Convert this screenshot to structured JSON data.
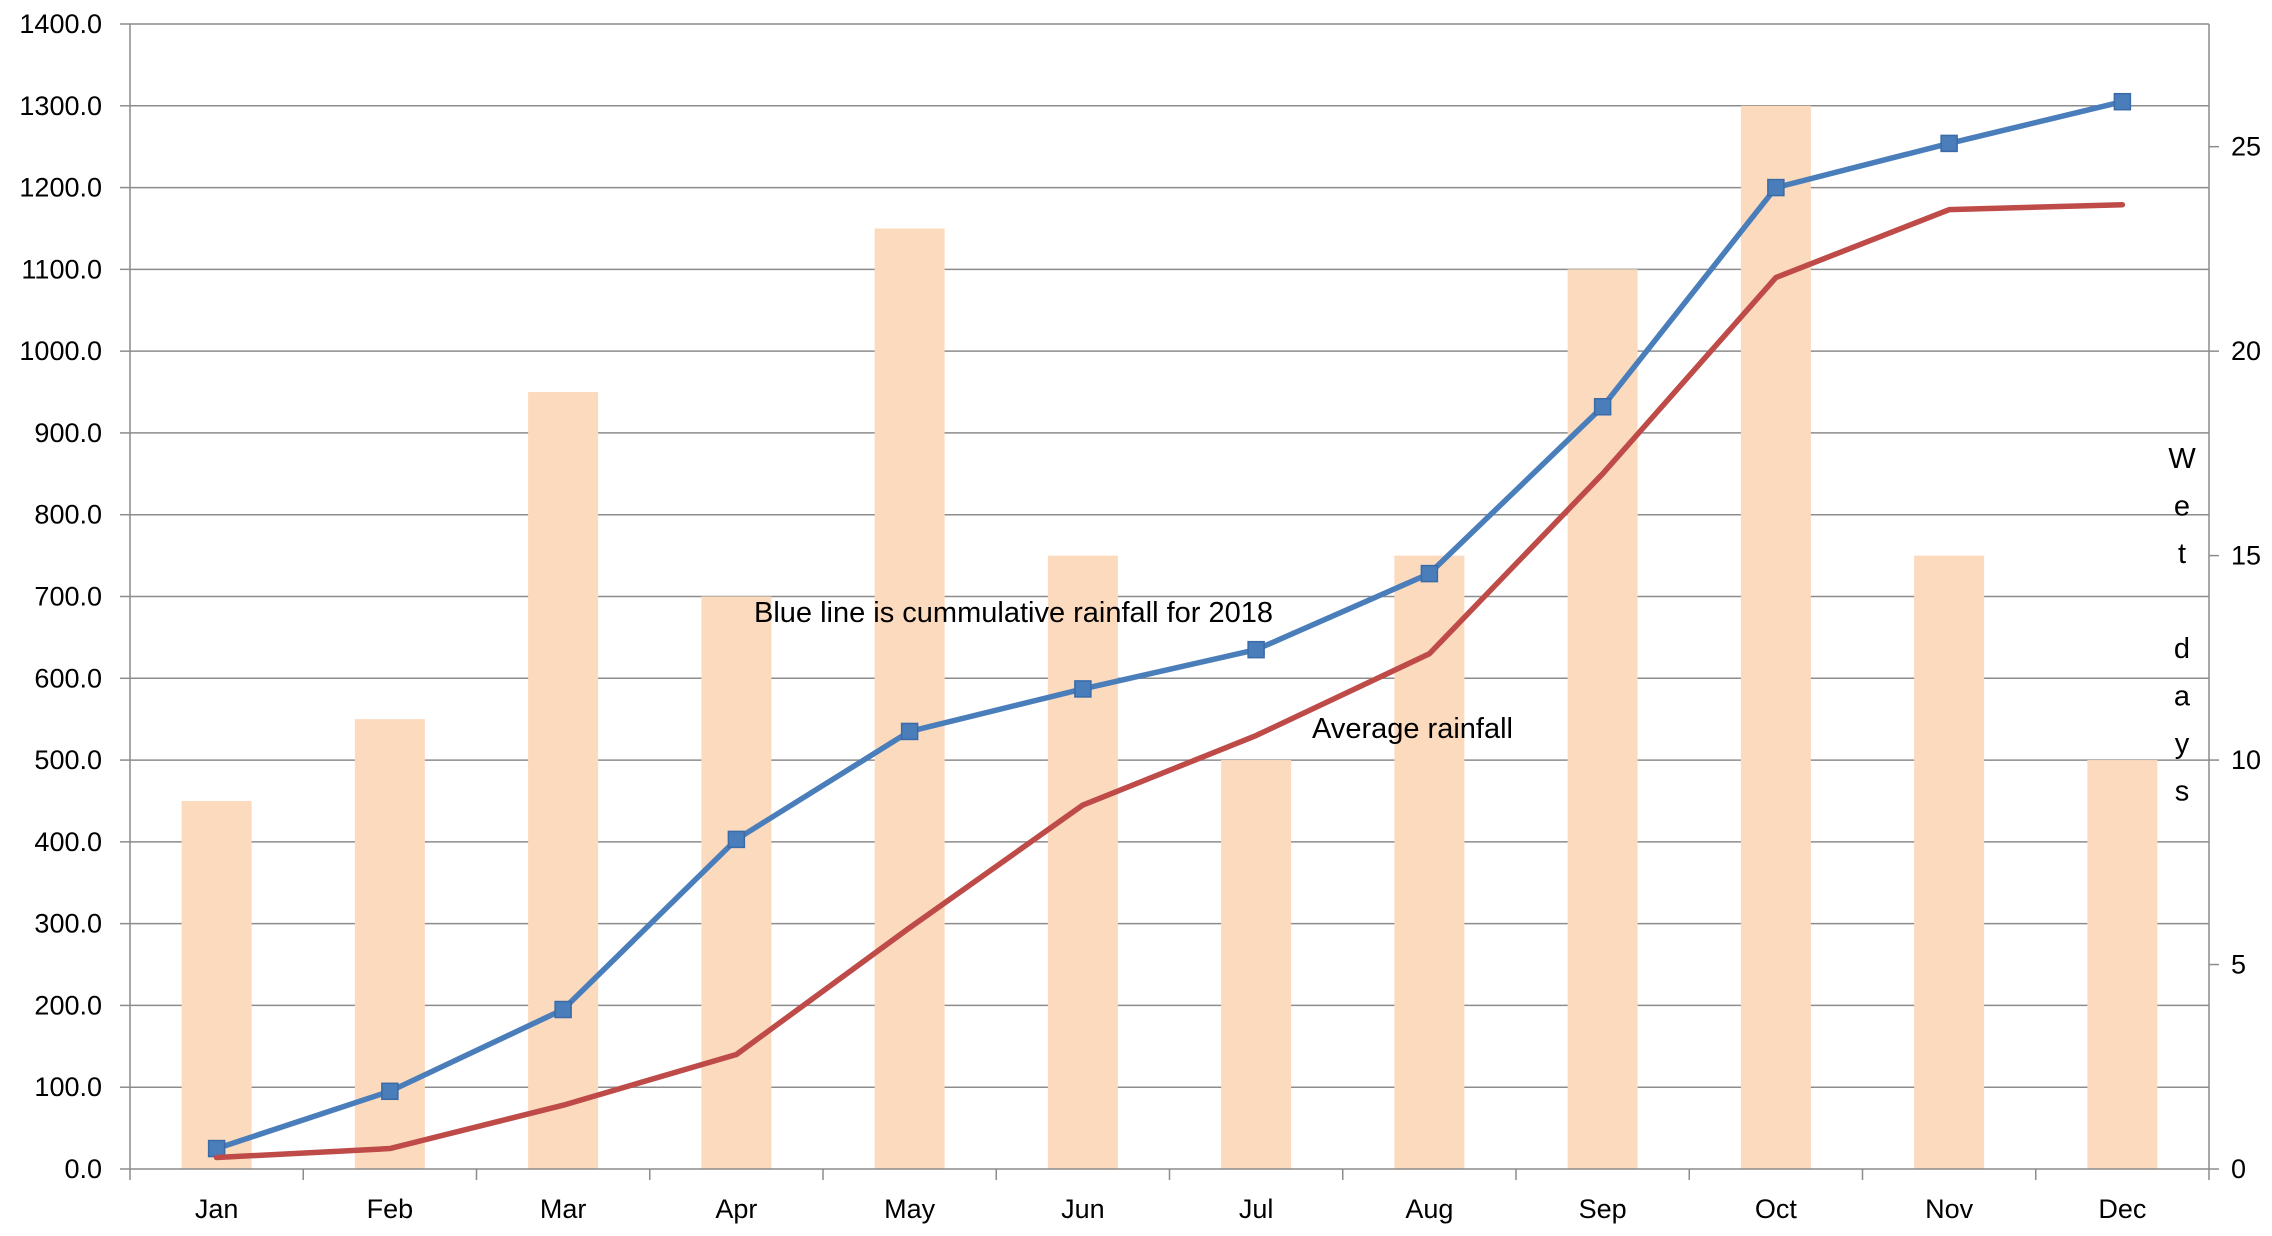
{
  "chart_data": {
    "type": "bar",
    "categories": [
      "Jan",
      "Feb",
      "Mar",
      "Apr",
      "May",
      "Jun",
      "Jul",
      "Aug",
      "Sep",
      "Oct",
      "Nov",
      "Dec"
    ],
    "bars": {
      "axis": "right",
      "values": [
        9,
        11,
        19,
        14,
        23,
        15,
        10,
        15,
        22,
        26,
        15,
        10
      ],
      "color": "#fcdabe"
    },
    "series": [
      {
        "type": "line",
        "axis": "left",
        "color": "#4a7ebb",
        "marker": "square",
        "values": [
          25,
          95,
          195,
          403,
          535,
          587,
          635,
          728,
          932,
          1200,
          1254,
          1305
        ]
      },
      {
        "type": "line",
        "axis": "left",
        "color": "#be4b48",
        "marker": "none",
        "values": [
          14,
          25,
          78,
          140,
          295,
          445,
          530,
          630,
          850,
          1090,
          1173,
          1179
        ]
      }
    ],
    "left_axis": {
      "ylim": [
        0,
        1400
      ],
      "ticks": [
        "0.0",
        "100.0",
        "200.0",
        "300.0",
        "400.0",
        "500.0",
        "600.0",
        "700.0",
        "800.0",
        "900.0",
        "1000.0",
        "1100.0",
        "1200.0",
        "1300.0",
        "1400.0"
      ]
    },
    "right_axis": {
      "ylim": [
        0,
        28
      ],
      "ticks": [
        "0",
        "5",
        "10",
        "15",
        "20",
        "25"
      ],
      "title_letters": [
        "W",
        "e",
        "t",
        "",
        "d",
        "a",
        "y",
        "s"
      ]
    },
    "annotations": {
      "blue_line_note": "Blue line is cummulative rainfall for 2018",
      "average_note": "Average rainfall"
    },
    "grid": true,
    "gridline_color": "#8c8c8c"
  }
}
